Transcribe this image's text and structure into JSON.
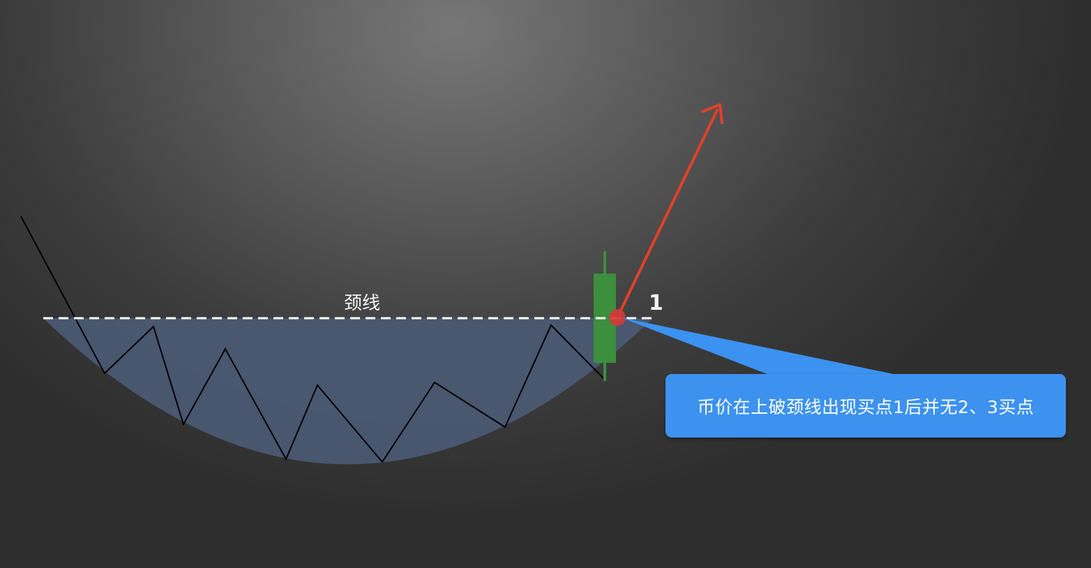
{
  "diagram": {
    "neckline_label": "颈线",
    "buy_point_label": "1",
    "callout_text": "币价在上破颈线出现买点1后并无2、3买点"
  },
  "colors": {
    "bowl_fill": "#4a5872",
    "price_line": "#000000",
    "neckline": "#ffffff",
    "candle": "#3c8f3c",
    "arrow": "#e2402a",
    "buy_point": "#d63a36",
    "callout": "#3c92f0"
  }
}
